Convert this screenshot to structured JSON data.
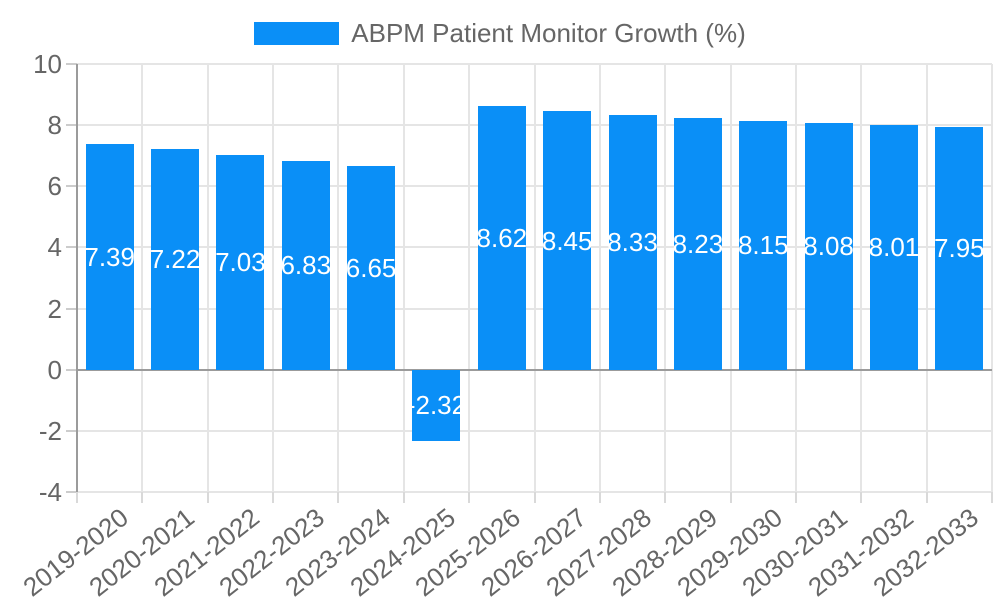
{
  "legend": {
    "label": "ABPM Patient Monitor Growth (%)"
  },
  "chart_data": {
    "type": "bar",
    "title": "ABPM Patient Monitor Growth (%)",
    "categories": [
      "2019-2020",
      "2020-2021",
      "2021-2022",
      "2022-2023",
      "2023-2024",
      "2024-2025",
      "2025-2026",
      "2026-2027",
      "2027-2028",
      "2028-2029",
      "2029-2030",
      "2030-2031",
      "2031-2032",
      "2032-2033"
    ],
    "values": [
      7.39,
      7.22,
      7.03,
      6.83,
      6.65,
      -2.32,
      8.62,
      8.45,
      8.33,
      8.23,
      8.15,
      8.08,
      8.01,
      7.95
    ],
    "value_labels": [
      "7.39",
      "7.22",
      "7.03",
      "6.83",
      "6.65",
      "-2.32",
      "8.62",
      "8.45",
      "8.33",
      "8.23",
      "8.15",
      "8.08",
      "8.01",
      "7.95"
    ],
    "xlabel": "",
    "ylabel": "",
    "ylim": [
      -4,
      10
    ],
    "yticks": [
      10,
      8,
      6,
      4,
      2,
      0,
      -2,
      -4
    ],
    "grid": true,
    "legend_position": "top",
    "colors": {
      "bar": "#0a8ff7",
      "value_label": "#ffffff",
      "grid_line": "#e5e5e5",
      "zero_line": "#9b9b9b",
      "axis_line": "#9b9b9b",
      "tick_text": "#666666",
      "legend_text": "#666666",
      "background": "#ffffff"
    }
  }
}
